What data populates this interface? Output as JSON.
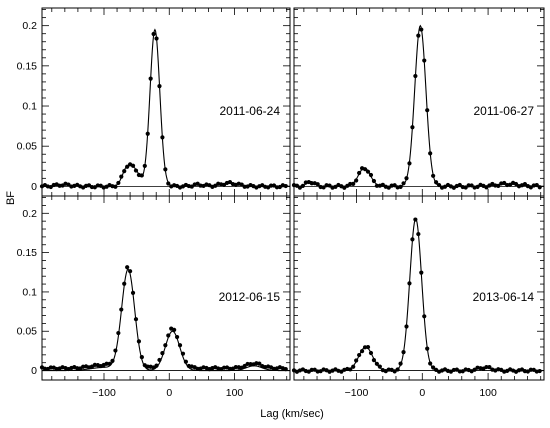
{
  "figure": {
    "xlabel": "Lag (km/sec)",
    "ylabel": "BF"
  },
  "chart_data": [
    {
      "type": "scatter",
      "panel": "2011-06-24",
      "xlim": [
        -195,
        185
      ],
      "ylim": [
        -0.012,
        0.222
      ],
      "xticks": [
        -100,
        0,
        100
      ],
      "yticks": [
        0,
        0.05,
        0.1,
        0.15,
        0.2
      ],
      "yticklabels": [
        "0",
        "0.05",
        "0.1",
        "0.15",
        "0.2"
      ],
      "show_xticklabels": false,
      "show_yticklabels": true,
      "baseline": 0,
      "components": [
        {
          "mu": -22,
          "sigma": 7.5,
          "amp": 0.195
        },
        {
          "mu": -52,
          "sigma": 7,
          "amp": 0.018
        },
        {
          "mu": -65,
          "sigma": 7,
          "amp": 0.022
        },
        {
          "mu": 92,
          "sigma": 13,
          "amp": 0.004
        },
        {
          "mu": 45,
          "sigma": 10,
          "amp": 0.002
        },
        {
          "mu": -162,
          "sigma": 12,
          "amp": 0.002
        }
      ],
      "series": [
        {
          "style": "points",
          "x_start": -195,
          "x_end": 180,
          "step": 4.5,
          "ripple": 0.0015
        },
        {
          "style": "fit-line",
          "smooth": true
        }
      ]
    },
    {
      "type": "scatter",
      "panel": "2011-06-27",
      "xlim": [
        -195,
        185
      ],
      "ylim": [
        -0.012,
        0.222
      ],
      "xticks": [
        -100,
        0,
        100
      ],
      "yticks": [
        0,
        0.05,
        0.1,
        0.15,
        0.2
      ],
      "show_xticklabels": false,
      "show_yticklabels": false,
      "baseline": 0,
      "components": [
        {
          "mu": -3,
          "sigma": 8.5,
          "amp": 0.2
        },
        {
          "mu": -88,
          "sigma": 9,
          "amp": 0.023
        },
        {
          "mu": -170,
          "sigma": 6,
          "amp": 0.006
        },
        {
          "mu": 130,
          "sigma": 18,
          "amp": 0.003
        }
      ],
      "series": [
        {
          "style": "points",
          "x_start": -195,
          "x_end": 180,
          "step": 4.5,
          "ripple": 0.0018
        },
        {
          "style": "fit-line",
          "smooth": true
        }
      ]
    },
    {
      "type": "scatter",
      "panel": "2012-06-15",
      "xlim": [
        -195,
        185
      ],
      "ylim": [
        -0.012,
        0.222
      ],
      "xticks": [
        -100,
        0,
        100
      ],
      "xticklabels": [
        "−100",
        "0",
        "100"
      ],
      "yticks": [
        0,
        0.05,
        0.1,
        0.15,
        0.2
      ],
      "yticklabels": [
        "0",
        "0.05",
        "0.1",
        "0.15",
        "0.2"
      ],
      "show_xticklabels": true,
      "show_yticklabels": true,
      "baseline": 0,
      "components": [
        {
          "mu": -63,
          "sigma": 10,
          "amp": 0.128
        },
        {
          "mu": 5,
          "sigma": 11,
          "amp": 0.05
        },
        {
          "mu": -100,
          "sigma": 20,
          "amp": 0.004
        },
        {
          "mu": 130,
          "sigma": 12,
          "amp": 0.006
        }
      ],
      "series": [
        {
          "style": "points",
          "x_start": -195,
          "x_end": 180,
          "step": 4.5,
          "ripple": 0.0012,
          "offset": 0.003
        },
        {
          "style": "fit-line",
          "smooth": true
        }
      ]
    },
    {
      "type": "scatter",
      "panel": "2013-06-14",
      "xlim": [
        -195,
        185
      ],
      "ylim": [
        -0.012,
        0.222
      ],
      "xticks": [
        -100,
        0,
        100
      ],
      "xticklabels": [
        "−100",
        "0",
        "100"
      ],
      "yticks": [
        0,
        0.05,
        0.1,
        0.15,
        0.2
      ],
      "show_xticklabels": true,
      "show_yticklabels": false,
      "baseline": 0,
      "components": [
        {
          "mu": -10,
          "sigma": 9,
          "amp": 0.193
        },
        {
          "mu": -86,
          "sigma": 10.5,
          "amp": 0.03
        },
        {
          "mu": 95,
          "sigma": 10,
          "amp": 0.004
        }
      ],
      "series": [
        {
          "style": "points",
          "x_start": -195,
          "x_end": 180,
          "step": 4.5,
          "ripple": 0.0015
        },
        {
          "style": "fit-line",
          "smooth": true
        }
      ]
    }
  ]
}
